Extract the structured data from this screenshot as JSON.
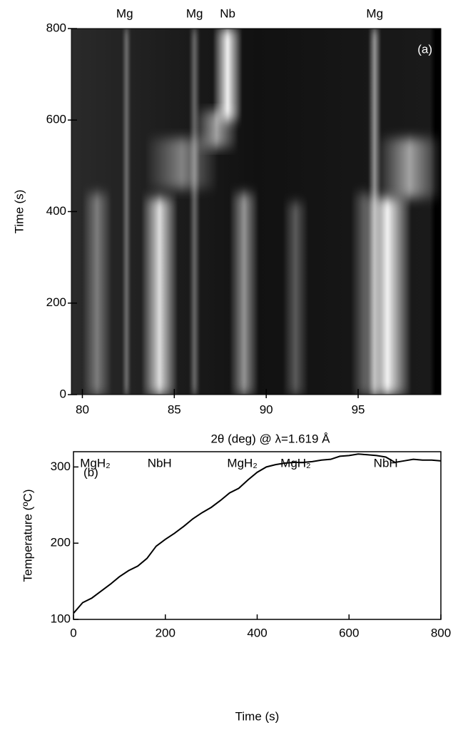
{
  "chart_data": [
    {
      "type": "heatmap",
      "title": "(a)",
      "xlabel": "2θ (deg) @ λ=1.619 Å",
      "ylabel": "Time (s)",
      "xlim": [
        79.4,
        99.5
      ],
      "ylim": [
        0,
        800
      ],
      "xticks": [
        80,
        85,
        90,
        95
      ],
      "yticks": [
        0,
        200,
        400,
        600,
        800
      ],
      "top_labels": [
        {
          "label": "Mg",
          "value": 82.3
        },
        {
          "label": "Mg",
          "value": 86.1
        },
        {
          "label": "Nb",
          "value": 87.9
        },
        {
          "label": "Mg",
          "value": 95.9
        }
      ],
      "bottom_labels": [
        {
          "label": "MgH₂",
          "value": 80.7
        },
        {
          "label": "NbH",
          "value": 84.2
        },
        {
          "label": "MgH₂",
          "value": 88.7
        },
        {
          "label": "MgH₂",
          "value": 91.6
        },
        {
          "label": "NbH",
          "value": 96.5
        }
      ],
      "peaks": [
        {
          "x": 80.8,
          "width": 0.8,
          "y": [
            0,
            440
          ],
          "intensity": 0.4
        },
        {
          "x": 82.4,
          "width": 0.25,
          "y": [
            0,
            800
          ],
          "intensity": 0.35
        },
        {
          "x": 84.2,
          "width": 1.0,
          "y": [
            0,
            430
          ],
          "intensity": 0.85
        },
        {
          "x": 86.1,
          "width": 0.3,
          "y": [
            0,
            800
          ],
          "intensity": 0.35
        },
        {
          "x": 85.4,
          "width": 2.0,
          "y": [
            450,
            560
          ],
          "intensity": 0.45
        },
        {
          "x": 87.3,
          "width": 1.2,
          "y": [
            540,
            620
          ],
          "intensity": 0.6
        },
        {
          "x": 87.9,
          "width": 0.8,
          "y": [
            600,
            800
          ],
          "intensity": 0.95
        },
        {
          "x": 88.8,
          "width": 0.8,
          "y": [
            0,
            440
          ],
          "intensity": 0.55
        },
        {
          "x": 91.6,
          "width": 0.7,
          "y": [
            0,
            420
          ],
          "intensity": 0.3
        },
        {
          "x": 95.3,
          "width": 0.7,
          "y": [
            0,
            440
          ],
          "intensity": 0.3
        },
        {
          "x": 95.9,
          "width": 0.35,
          "y": [
            0,
            800
          ],
          "intensity": 0.55
        },
        {
          "x": 96.6,
          "width": 1.3,
          "y": [
            0,
            430
          ],
          "intensity": 0.95
        },
        {
          "x": 97.8,
          "width": 1.8,
          "y": [
            430,
            560
          ],
          "intensity": 0.6
        }
      ]
    },
    {
      "type": "line",
      "title": "(b)",
      "xlabel": "Time (s)",
      "ylabel": "Temperature (ºC)",
      "xlim": [
        0,
        800
      ],
      "ylim": [
        100,
        320
      ],
      "xticks": [
        0,
        200,
        400,
        600,
        800
      ],
      "yticks": [
        100,
        200,
        300
      ],
      "color": "#000000",
      "x": [
        0,
        20,
        40,
        60,
        80,
        100,
        120,
        140,
        160,
        180,
        200,
        220,
        240,
        260,
        280,
        300,
        320,
        340,
        360,
        380,
        400,
        420,
        440,
        460,
        480,
        500,
        520,
        540,
        560,
        580,
        600,
        620,
        640,
        660,
        680,
        700,
        720,
        740,
        760,
        780,
        800
      ],
      "values": [
        108,
        122,
        128,
        137,
        146,
        156,
        164,
        170,
        180,
        196,
        205,
        213,
        222,
        232,
        240,
        247,
        256,
        266,
        272,
        283,
        293,
        300,
        303,
        305,
        306,
        306,
        307,
        309,
        310,
        314,
        315,
        317,
        316,
        315,
        313,
        306,
        308,
        310,
        309,
        309,
        308
      ]
    }
  ]
}
